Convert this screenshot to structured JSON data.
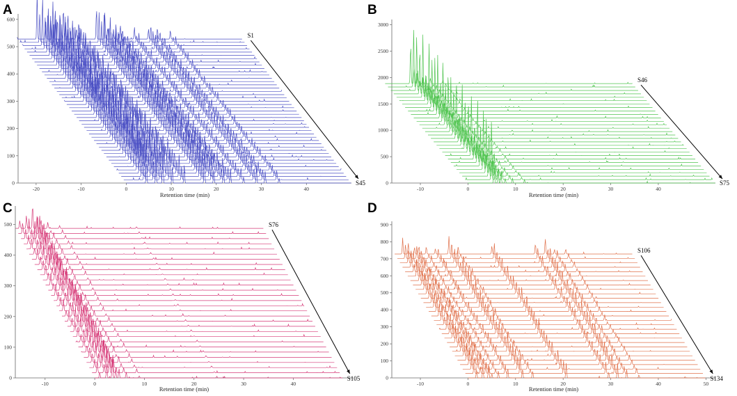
{
  "figure": {
    "colors": {
      "arrow": "#000000",
      "axis": "#666666",
      "text": "#000000"
    }
  },
  "chart_data": [
    {
      "type": "line",
      "panel": "A",
      "title": "",
      "xlabel": "Retention time (min)",
      "ylabel": "",
      "x_ticks": [
        "-20",
        "-10",
        "0",
        "10",
        "20",
        "30",
        "40"
      ],
      "y_ticks": [
        "0",
        "100",
        "200",
        "300",
        "400",
        "500",
        "600"
      ],
      "xlim": [
        -24,
        50
      ],
      "ylim": [
        0,
        620
      ],
      "series_count": 45,
      "first_label": "S1",
      "last_label": "S45",
      "color": "#4a4fc4",
      "offset_x_per_trace": -0.55,
      "offset_y_per_trace": 12,
      "trace_start": 0,
      "trace_end": 50,
      "peaks": [
        [
          4.5,
          160
        ],
        [
          6.5,
          110
        ],
        [
          8.0,
          130
        ],
        [
          10.2,
          110
        ],
        [
          13.0,
          70
        ],
        [
          17.5,
          110
        ],
        [
          19.5,
          90
        ],
        [
          21.5,
          60
        ],
        [
          23.0,
          50
        ],
        [
          26.0,
          40
        ],
        [
          29.0,
          60
        ],
        [
          31.0,
          40
        ],
        [
          34.0,
          30
        ]
      ]
    },
    {
      "type": "line",
      "panel": "B",
      "title": "",
      "xlabel": "Retention time (min)",
      "ylabel": "",
      "x_ticks": [
        "-10",
        "0",
        "10",
        "20",
        "30",
        "40"
      ],
      "y_ticks": [
        "0",
        "500",
        "1000",
        "1500",
        "2000",
        "2500",
        "3000"
      ],
      "xlim": [
        -16,
        52
      ],
      "ylim": [
        0,
        3100
      ],
      "series_count": 30,
      "first_label": "S46",
      "last_label": "S75",
      "color": "#4fc44f",
      "offset_x_per_trace": -0.6,
      "offset_y_per_trace": 65,
      "trace_start": 0,
      "trace_end": 52,
      "peaks": [
        [
          5.5,
          1050
        ],
        [
          6.2,
          300
        ],
        [
          6.8,
          220
        ],
        [
          7.8,
          160
        ],
        [
          12.0,
          60
        ],
        [
          9.5,
          90
        ]
      ]
    },
    {
      "type": "line",
      "panel": "C",
      "title": "",
      "xlabel": "Retention time (min)",
      "ylabel": "",
      "x_ticks": [
        "-10",
        "0",
        "10",
        "20",
        "30",
        "40"
      ],
      "y_ticks": [
        "0",
        "100",
        "200",
        "300",
        "400",
        "500"
      ],
      "xlim": [
        -16,
        52
      ],
      "ylim": [
        0,
        560
      ],
      "series_count": 30,
      "first_label": "S76",
      "last_label": "S105",
      "color": "#d63a78",
      "offset_x_per_trace": -0.55,
      "offset_y_per_trace": 16.8,
      "trace_start": 0,
      "trace_end": 50,
      "peaks": [
        [
          1.0,
          35
        ],
        [
          2.3,
          45
        ],
        [
          3.4,
          70
        ],
        [
          4.2,
          55
        ],
        [
          5.0,
          30
        ],
        [
          6.5,
          18
        ],
        [
          9.0,
          12
        ],
        [
          24.5,
          5
        ]
      ]
    },
    {
      "type": "line",
      "panel": "D",
      "title": "",
      "xlabel": "Retention time (min)",
      "ylabel": "",
      "x_ticks": [
        "-10",
        "0",
        "10",
        "20",
        "30",
        "40",
        "50"
      ],
      "y_ticks": [
        "0",
        "100",
        "200",
        "300",
        "400",
        "500",
        "600",
        "700",
        "800",
        "900"
      ],
      "xlim": [
        -16,
        52
      ],
      "ylim": [
        0,
        920
      ],
      "series_count": 29,
      "first_label": "S106",
      "last_label": "S134",
      "color": "#e0704a",
      "offset_x_per_trace": -0.55,
      "offset_y_per_trace": 26,
      "trace_start": 0,
      "trace_end": 50,
      "peaks": [
        [
          1.8,
          90
        ],
        [
          3.0,
          60
        ],
        [
          4.2,
          70
        ],
        [
          5.0,
          45
        ],
        [
          6.5,
          40
        ],
        [
          8.5,
          55
        ],
        [
          11.5,
          100
        ],
        [
          13.5,
          40
        ],
        [
          20.5,
          80
        ],
        [
          29.5,
          60
        ],
        [
          31.5,
          85
        ],
        [
          33.5,
          45
        ],
        [
          36.0,
          30
        ]
      ]
    }
  ]
}
